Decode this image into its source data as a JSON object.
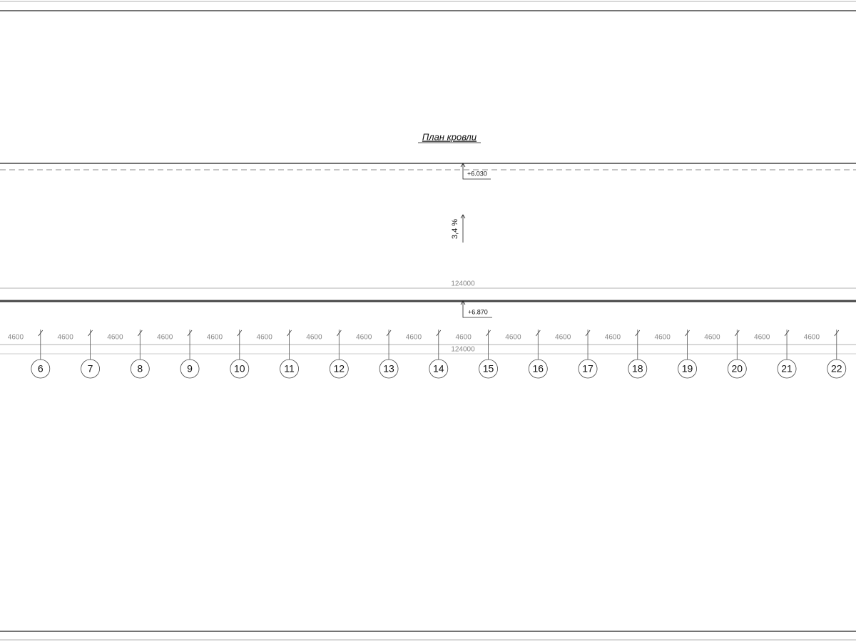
{
  "title": "План кровли",
  "elevations": [
    "+6.030",
    "+6.870"
  ],
  "slope": "3,4 %",
  "overall_dimensions": [
    "124000",
    "124000"
  ],
  "bay_dimensions": [
    "4600",
    "4600",
    "4600",
    "4600",
    "4600",
    "4600",
    "4600",
    "4600",
    "4600",
    "4600",
    "4600",
    "4600",
    "4600",
    "4600",
    "4600",
    "4600",
    "4600"
  ],
  "axes": [
    "6",
    "7",
    "8",
    "9",
    "10",
    "11",
    "12",
    "13",
    "14",
    "15",
    "16",
    "17",
    "18",
    "19",
    "20",
    "21",
    "22"
  ]
}
